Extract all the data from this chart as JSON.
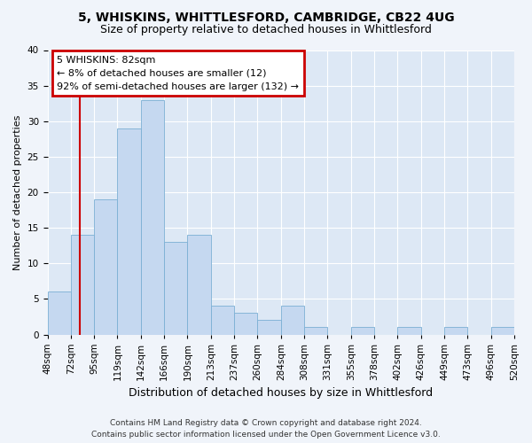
{
  "title1": "5, WHISKINS, WHITTLESFORD, CAMBRIDGE, CB22 4UG",
  "title2": "Size of property relative to detached houses in Whittlesford",
  "xlabel": "Distribution of detached houses by size in Whittlesford",
  "ylabel": "Number of detached properties",
  "bar_values": [
    6,
    14,
    19,
    29,
    33,
    13,
    14,
    4,
    3,
    2,
    4,
    1,
    0,
    1,
    0,
    1,
    0,
    1,
    0,
    1
  ],
  "categories": [
    "48sqm",
    "72sqm",
    "95sqm",
    "119sqm",
    "142sqm",
    "166sqm",
    "190sqm",
    "213sqm",
    "237sqm",
    "260sqm",
    "284sqm",
    "308sqm",
    "331sqm",
    "355sqm",
    "378sqm",
    "402sqm",
    "426sqm",
    "449sqm",
    "473sqm",
    "496sqm",
    "520sqm"
  ],
  "bar_color": "#c5d8f0",
  "bar_edge_color": "#7bafd4",
  "vline_color": "#cc0000",
  "vline_x_index": 1.4,
  "annotation_title": "5 WHISKINS: 82sqm",
  "annotation_line1": "← 8% of detached houses are smaller (12)",
  "annotation_line2": "92% of semi-detached houses are larger (132) →",
  "annotation_box_edgecolor": "#cc0000",
  "annotation_box_facecolor": "#ffffff",
  "ylim": [
    0,
    40
  ],
  "yticks": [
    0,
    5,
    10,
    15,
    20,
    25,
    30,
    35,
    40
  ],
  "footer1": "Contains HM Land Registry data © Crown copyright and database right 2024.",
  "footer2": "Contains public sector information licensed under the Open Government Licence v3.0.",
  "background_color": "#f0f4fa",
  "plot_bg_color": "#dde8f5",
  "grid_color": "#ffffff",
  "title1_fontsize": 10,
  "title2_fontsize": 9,
  "ylabel_fontsize": 8,
  "xlabel_fontsize": 9,
  "tick_fontsize": 7.5,
  "footer_fontsize": 6.5
}
